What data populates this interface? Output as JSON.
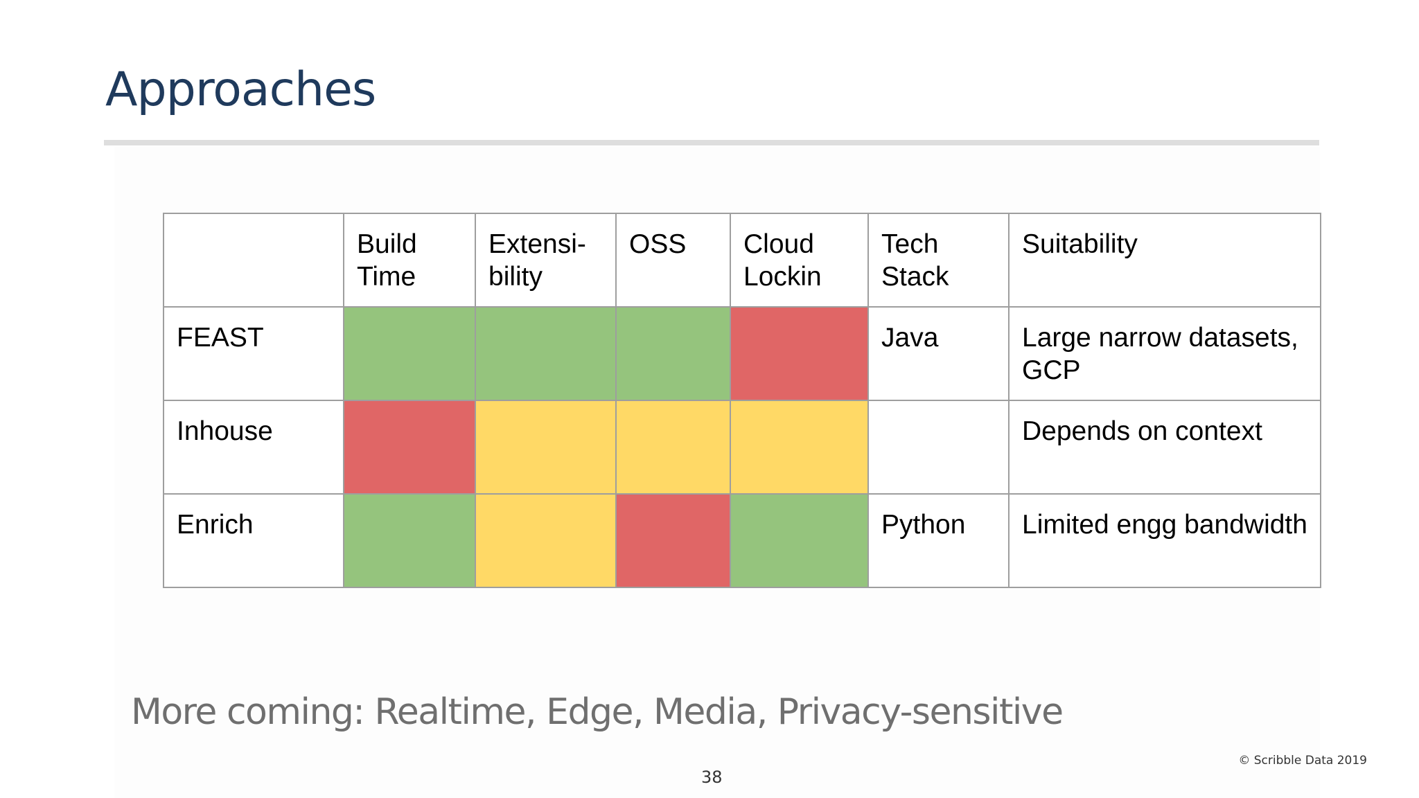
{
  "slide": {
    "title": "Approaches",
    "footer_note": "More coming: Realtime, Edge, Media, Privacy-sensitive",
    "copyright": "© Scribble Data 2019",
    "page_number": "38"
  },
  "colors": {
    "title": "#1f3a5c",
    "green": "#95c47d",
    "red": "#e06666",
    "yellow": "#ffd966",
    "border": "#9e9e9e",
    "rule": "#dedede"
  },
  "table": {
    "headers": [
      {
        "line1": "",
        "line2": ""
      },
      {
        "line1": "Build",
        "line2": "Time"
      },
      {
        "line1": "Extensi-",
        "line2": "bility"
      },
      {
        "line1": "OSS",
        "line2": ""
      },
      {
        "line1": "Cloud",
        "line2": "Lockin"
      },
      {
        "line1": "Tech",
        "line2": "Stack"
      },
      {
        "line1": "Suitability",
        "line2": ""
      }
    ],
    "rows": [
      {
        "name": "FEAST",
        "ratings": [
          "green",
          "green",
          "green",
          "red"
        ],
        "tech_stack": "Java",
        "suitability": "Large narrow datasets, GCP"
      },
      {
        "name": "Inhouse",
        "ratings": [
          "red",
          "yellow",
          "yellow",
          "yellow"
        ],
        "tech_stack": "",
        "suitability": "Depends on context"
      },
      {
        "name": "Enrich",
        "ratings": [
          "green",
          "yellow",
          "red",
          "green"
        ],
        "tech_stack": "Python",
        "suitability": "Limited engg bandwidth"
      }
    ]
  }
}
